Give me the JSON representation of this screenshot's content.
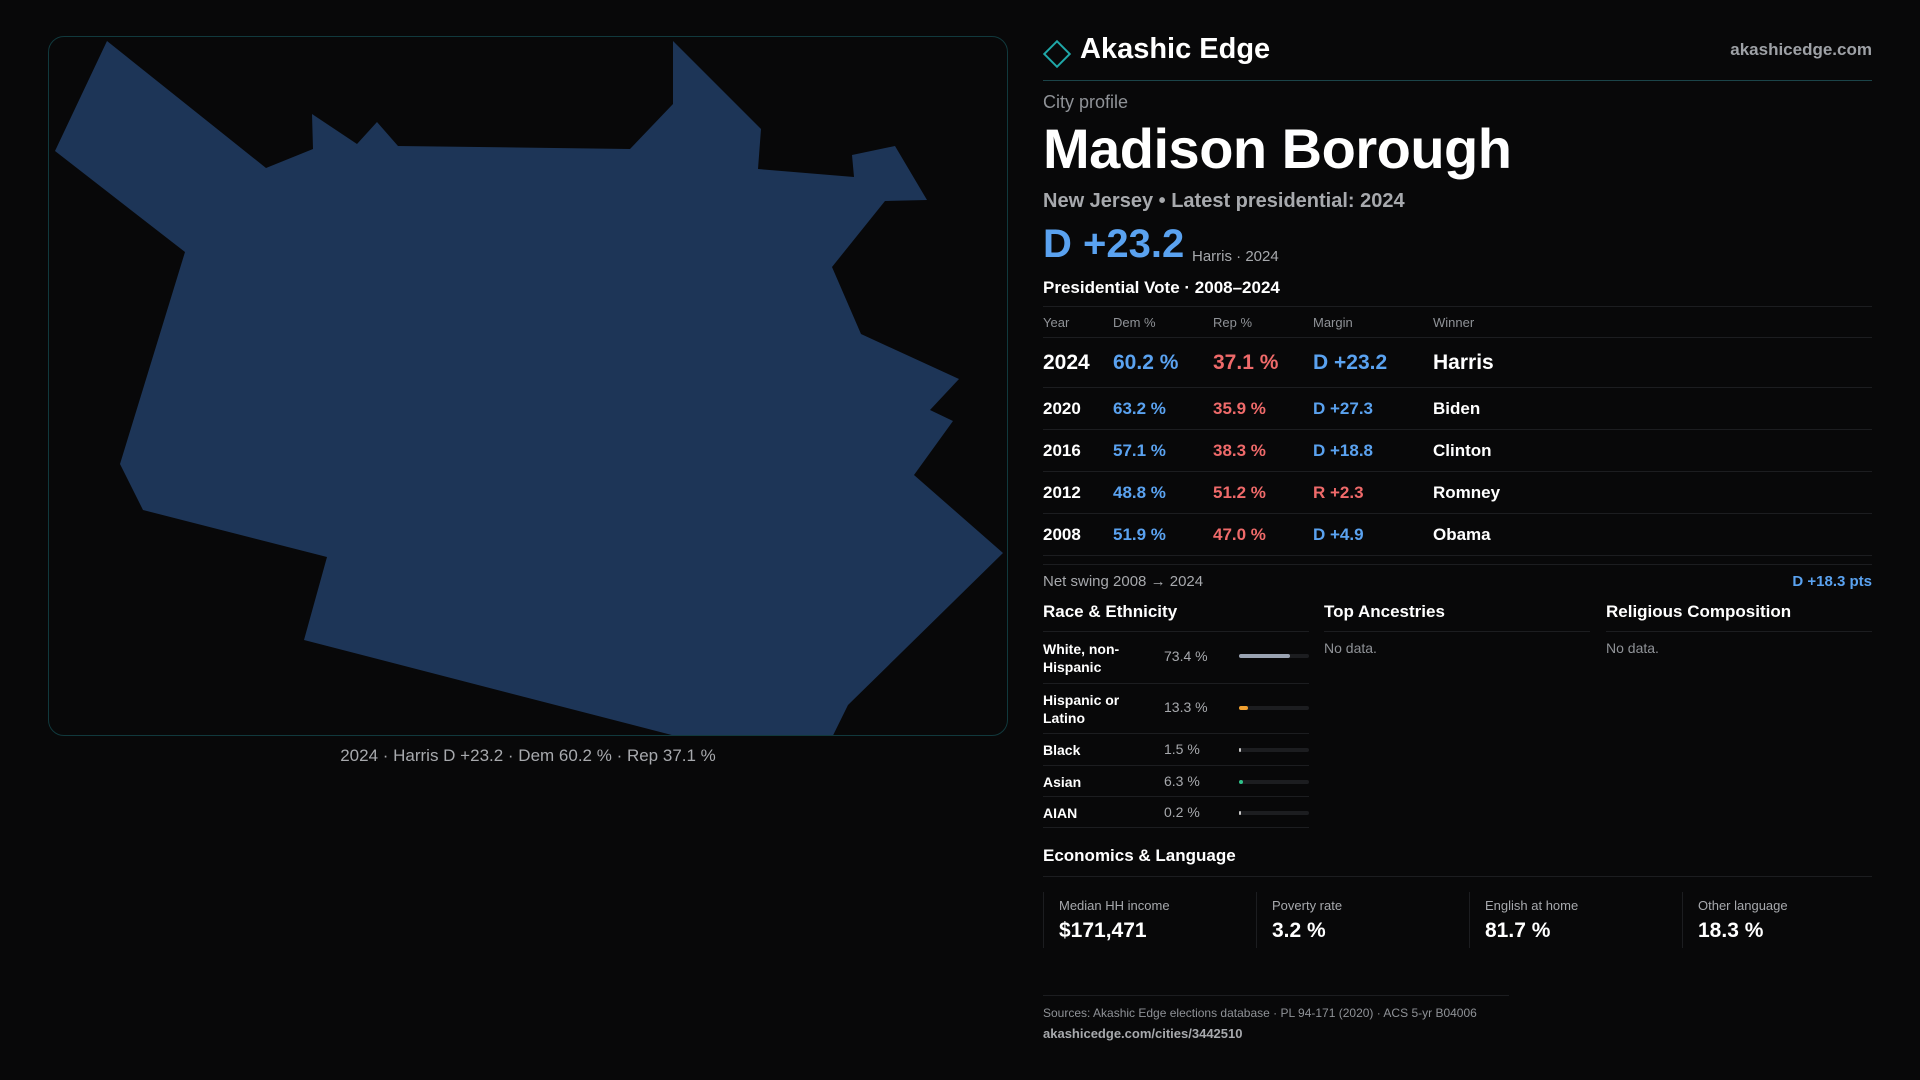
{
  "map": {
    "fill": "#1d3557",
    "border": "#11393d",
    "caption": "2024 · Harris D +23.2 · Dem 60.2 % · Rep 37.1 %"
  },
  "brand": {
    "name": "Akashic Edge",
    "url": "akashicedge.com",
    "icon": "diamond-icon"
  },
  "profile": {
    "eyebrow": "City profile",
    "title": "Madison Borough",
    "subtitle": "New Jersey • Latest presidential: 2024",
    "margin": "D +23.2",
    "margin_note": "Harris · 2024"
  },
  "vote": {
    "heading": "Presidential Vote · 2008–2024",
    "columns": [
      "Year",
      "Dem %",
      "Rep %",
      "Margin",
      "Winner"
    ],
    "rows": [
      {
        "year": "2024",
        "dem": "60.2 %",
        "rep": "37.1 %",
        "margin": "D +23.2",
        "winner": "Harris",
        "party": "D"
      },
      {
        "year": "2020",
        "dem": "63.2 %",
        "rep": "35.9 %",
        "margin": "D +27.3",
        "winner": "Biden",
        "party": "D"
      },
      {
        "year": "2016",
        "dem": "57.1 %",
        "rep": "38.3 %",
        "margin": "D +18.8",
        "winner": "Clinton",
        "party": "D"
      },
      {
        "year": "2012",
        "dem": "48.8 %",
        "rep": "51.2 %",
        "margin": "R +2.3",
        "winner": "Romney",
        "party": "R"
      },
      {
        "year": "2008",
        "dem": "51.9 %",
        "rep": "47.0 %",
        "margin": "D +4.9",
        "winner": "Obama",
        "party": "D"
      }
    ],
    "swing_label": "Net swing 2008 → 2024",
    "swing_value": "D +18.3 pts"
  },
  "race": {
    "heading": "Race & Ethnicity",
    "rows": [
      {
        "label": "White, non-Hispanic",
        "value": "73.4 %",
        "share": 0.734,
        "color": "#9aa3b2"
      },
      {
        "label": "Hispanic or Latino",
        "value": "13.3 %",
        "share": 0.133,
        "color": "#f0a030"
      },
      {
        "label": "Black",
        "value": "1.5 %",
        "share": 0.015,
        "color": "#c7c7c7"
      },
      {
        "label": "Asian",
        "value": "6.3 %",
        "share": 0.063,
        "color": "#2fc28a"
      },
      {
        "label": "AIAN",
        "value": "0.2 %",
        "share": 0.002,
        "color": "#c7c7c7"
      }
    ]
  },
  "ancestries": {
    "heading": "Top Ancestries",
    "empty": "No data."
  },
  "religion": {
    "heading": "Religious Composition",
    "empty": "No data."
  },
  "economics": {
    "heading": "Economics & Language",
    "stats": [
      {
        "label": "Median HH income",
        "value": "$171,471"
      },
      {
        "label": "Poverty rate",
        "value": "3.2 %"
      },
      {
        "label": "English at home",
        "value": "81.7 %"
      },
      {
        "label": "Other language",
        "value": "18.3 %"
      }
    ]
  },
  "sources": {
    "text": "Sources: Akashic Edge elections database · PL 94-171 (2020) · ACS 5-yr B04006",
    "url": "akashicedge.com/cities/3442510"
  },
  "colors": {
    "dem": "#5aa2f0",
    "rep": "#ef6a6a",
    "accent": "#1fa7a8",
    "background": "#080809"
  }
}
